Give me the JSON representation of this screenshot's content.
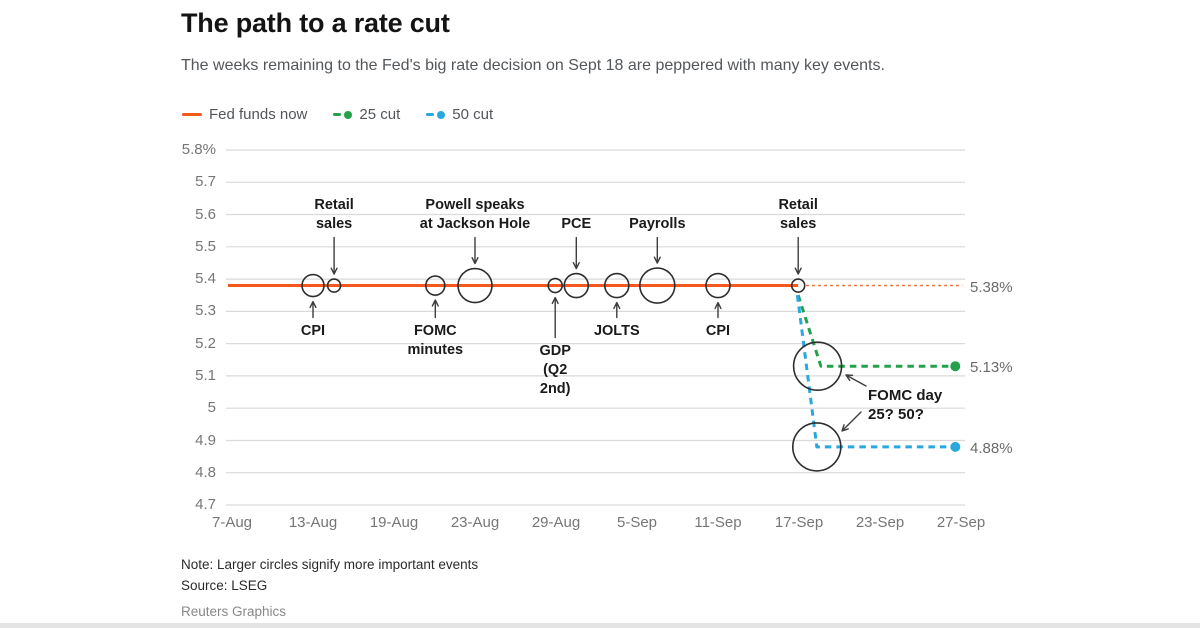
{
  "header": {
    "title": "The path to a rate cut",
    "subtitle": "The weeks remaining to the Fed's big rate decision on Sept 18 are peppered with many key events."
  },
  "colors": {
    "fed_funds": "#f4581c",
    "cut25": "#23a14b",
    "cut50": "#29a8e0",
    "grid": "#dadada",
    "axis_text": "#767676",
    "circle_stroke": "#2e2e2e",
    "arrow": "#3d3d3d",
    "annotation_text": "#1a1a1a",
    "value_label_text": "#6b6b6b"
  },
  "legend": [
    {
      "id": "fed-funds-now",
      "label": "Fed funds now",
      "swatch": "line",
      "color_key": "fed_funds"
    },
    {
      "id": "25-cut",
      "label": "25 cut",
      "swatch": "dash-dot",
      "color_key": "cut25"
    },
    {
      "id": "50-cut",
      "label": "50 cut",
      "swatch": "dash-dot",
      "color_key": "cut50"
    }
  ],
  "chart_data": {
    "type": "line",
    "title": "The path to a rate cut",
    "x_axis": {
      "ticks": [
        "7-Aug",
        "13-Aug",
        "19-Aug",
        "23-Aug",
        "29-Aug",
        "5-Sep",
        "11-Sep",
        "17-Sep",
        "23-Sep",
        "27-Sep"
      ]
    },
    "y_axis": {
      "range": [
        4.7,
        5.8
      ],
      "ticks": [
        {
          "label": "5.8%",
          "value": 5.8
        },
        {
          "label": "5.7",
          "value": 5.7
        },
        {
          "label": "5.6",
          "value": 5.6
        },
        {
          "label": "5.5",
          "value": 5.5
        },
        {
          "label": "5.4",
          "value": 5.4
        },
        {
          "label": "5.3",
          "value": 5.3
        },
        {
          "label": "5.2",
          "value": 5.2
        },
        {
          "label": "5.1",
          "value": 5.1
        },
        {
          "label": "5",
          "value": 5.0
        },
        {
          "label": "4.9",
          "value": 4.9
        },
        {
          "label": "4.8",
          "value": 4.8
        },
        {
          "label": "4.7",
          "value": 4.7
        }
      ]
    },
    "series": [
      {
        "id": "fed-funds-now",
        "name": "Fed funds now",
        "value": 5.38,
        "value_label": "5.38%",
        "color_key": "fed_funds",
        "solid_x": [
          0,
          6.99
        ],
        "dotted_x": [
          7.09,
          9.02
        ]
      },
      {
        "id": "25-cut",
        "name": "25 cut",
        "value": 5.13,
        "value_label": "5.13%",
        "color_key": "cut25",
        "path": [
          [
            6.99,
            5.35
          ],
          [
            7.27,
            5.13
          ],
          [
            8.9,
            5.13
          ]
        ],
        "end_dot_x": 8.93
      },
      {
        "id": "50-cut",
        "name": "50 cut",
        "value": 4.88,
        "value_label": "4.88%",
        "color_key": "cut50",
        "path": [
          [
            6.98,
            5.35
          ],
          [
            7.22,
            4.88
          ],
          [
            8.9,
            4.88
          ]
        ],
        "end_dot_x": 8.93
      }
    ],
    "events": [
      {
        "id": "cpi-aug",
        "label": "CPI",
        "x": 1.0,
        "size": 11,
        "side": "below"
      },
      {
        "id": "retail-sales-aug",
        "label": "Retail\nsales",
        "x": 1.26,
        "size": 6.5,
        "side": "above"
      },
      {
        "id": "fomc-minutes",
        "label": "FOMC\nminutes",
        "x": 2.51,
        "size": 9.5,
        "side": "below"
      },
      {
        "id": "powell-jackson-hole",
        "label": "Powell speaks\nat Jackson Hole",
        "x": 3.0,
        "size": 17,
        "side": "above"
      },
      {
        "id": "gdp-q2-2nd",
        "label": "GDP\n(Q2\n2nd)",
        "x": 3.99,
        "size": 7,
        "side": "below",
        "long_arrow": true
      },
      {
        "id": "pce",
        "label": "PCE",
        "x": 4.25,
        "size": 12,
        "side": "above"
      },
      {
        "id": "jolts",
        "label": "JOLTS",
        "x": 4.75,
        "size": 12,
        "side": "below"
      },
      {
        "id": "payrolls",
        "label": "Payrolls",
        "x": 5.25,
        "size": 17.5,
        "side": "above"
      },
      {
        "id": "cpi-sep",
        "label": "CPI",
        "x": 6.0,
        "size": 12,
        "side": "below"
      },
      {
        "id": "retail-sales-sep",
        "label": "Retail\nsales",
        "x": 6.99,
        "size": 6.5,
        "side": "above"
      }
    ],
    "annotation": {
      "line1": "FOMC day",
      "line2": "25? 50?",
      "circles": [
        {
          "x": 7.23,
          "y": 5.13,
          "r": 24
        },
        {
          "x": 7.22,
          "y": 4.88,
          "r": 24
        }
      ]
    }
  },
  "footer": {
    "note": "Note: Larger circles signify more important events",
    "source": "Source: LSEG",
    "credit": "Reuters Graphics"
  }
}
